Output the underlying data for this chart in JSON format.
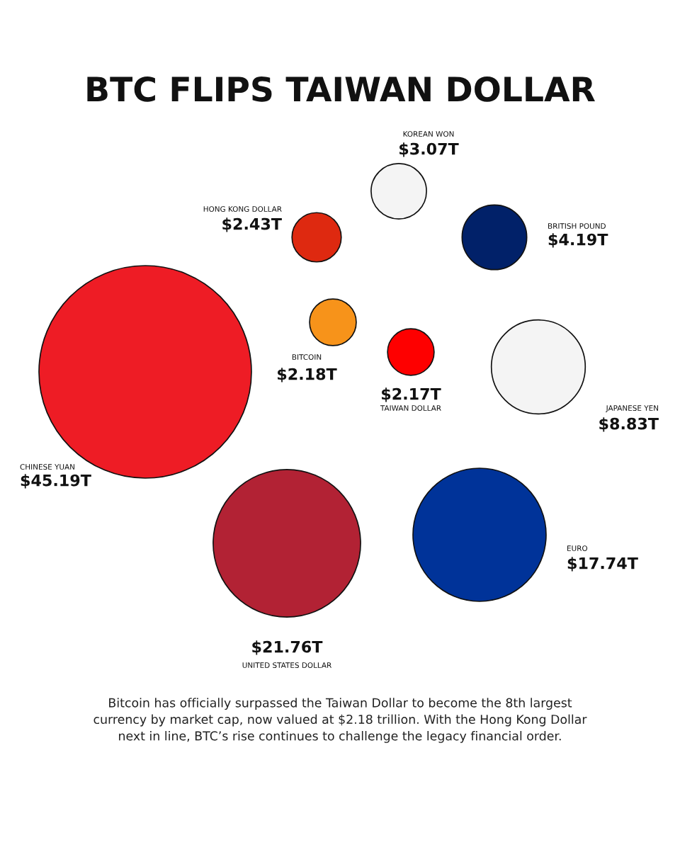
{
  "chart_data": {
    "type": "other",
    "title": "BTC FLIPS TAIWAN DOLLAR",
    "categories": [
      "KOREAN WON",
      "HONG KONG DOLLAR",
      "BRITISH POUND",
      "BITCOIN",
      "TAIWAN DOLLAR",
      "JAPANESE YEN",
      "CHINESE YUAN",
      "UNITED STATES DOLLAR",
      "EURO"
    ],
    "values": [
      3.07,
      2.43,
      4.19,
      2.18,
      2.17,
      8.83,
      45.19,
      21.76,
      17.74
    ],
    "value_labels": [
      "$3.07T",
      "$2.43T",
      "$4.19T",
      "$2.18T",
      "$2.17T",
      "$8.83T",
      "$45.19T",
      "$21.76T",
      "$17.74T"
    ],
    "colors": [
      "#f4f4f4",
      "#de2910",
      "#012169",
      "#f7931a",
      "#fe0000",
      "#f4f4f4",
      "#ee1c25",
      "#b22234",
      "#003399"
    ],
    "annotations": [
      "Bitcoin has officially surpassed the Taiwan Dollar to become the 8th largest\ncurrency by market cap, now valued at $2.18 trillion. With the Hong Kong Dollar\nnext in line, BTC’s rise continues to challenge the legacy financial order."
    ]
  }
}
